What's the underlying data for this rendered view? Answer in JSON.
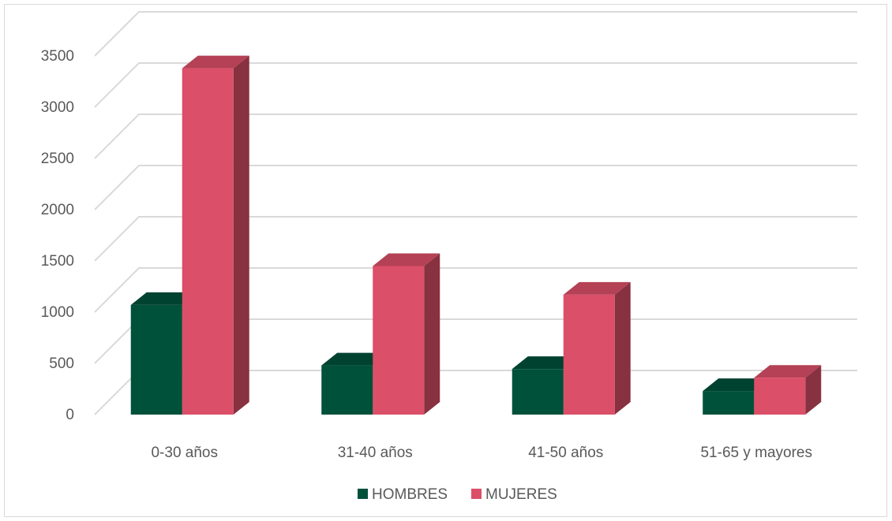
{
  "chart_data": {
    "type": "bar",
    "variant": "3d-clustered-column",
    "categories": [
      "0-30 años",
      "31-40 años",
      "41-50 años",
      "51-65 y mayores"
    ],
    "series": [
      {
        "name": "HOMBRES",
        "values": [
          1070,
          480,
          445,
          230
        ],
        "color": "#00513A"
      },
      {
        "name": "MUJERES",
        "values": [
          3380,
          1450,
          1170,
          360
        ],
        "color": "#DB4F68"
      }
    ],
    "yticks": [
      0,
      500,
      1000,
      1500,
      2000,
      2500,
      3000,
      3500
    ],
    "ylim": [
      0,
      3500
    ],
    "title": "",
    "xlabel": "",
    "ylabel": "",
    "grid": true,
    "legend_position": "bottom"
  }
}
